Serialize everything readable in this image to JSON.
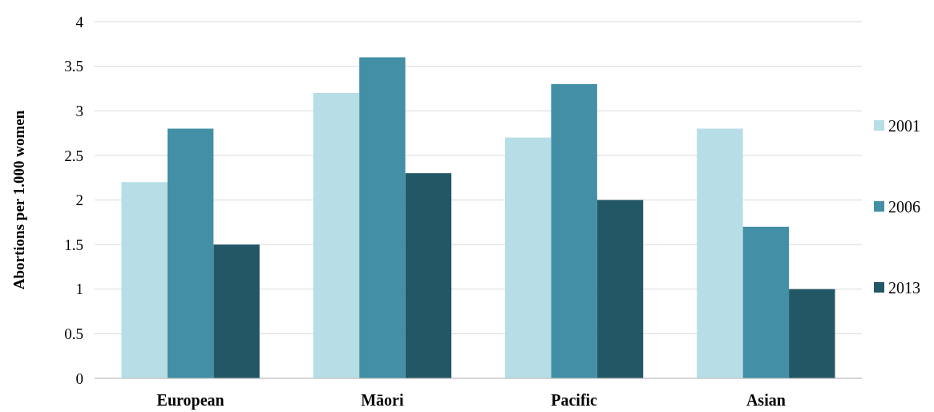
{
  "chart_data": {
    "type": "bar",
    "ylabel": "Abortions per 1.000 women",
    "categories": [
      "European",
      "Māori",
      "Pacific",
      "Asian"
    ],
    "series": [
      {
        "name": "2001",
        "color": "#b7dde6",
        "values": [
          2.2,
          3.2,
          2.7,
          2.8
        ]
      },
      {
        "name": "2006",
        "color": "#438fa5",
        "values": [
          2.8,
          3.6,
          3.3,
          1.7
        ]
      },
      {
        "name": "2013",
        "color": "#225765",
        "values": [
          1.5,
          2.3,
          2.0,
          1.0
        ]
      }
    ],
    "ylim": [
      0,
      4
    ],
    "yticks": [
      0,
      0.5,
      1,
      1.5,
      2,
      2.5,
      3,
      3.5,
      4
    ],
    "grid": "y",
    "legend": "right"
  }
}
